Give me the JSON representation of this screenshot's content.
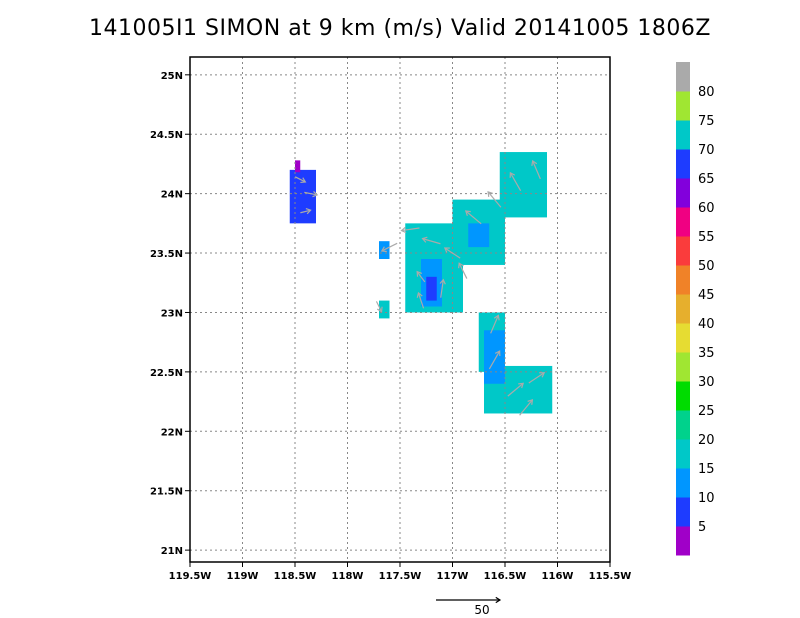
{
  "title": "141005I1 SIMON at 9 km (m/s) Valid 20141005 1806Z",
  "colors": {
    "c5": "#a000c8",
    "c10": "#1e3cff",
    "c15": "#0096ff",
    "c20": "#00c8c8",
    "c25": "#00d28c",
    "c30": "#00dc00",
    "c35": "#a0e632",
    "c40": "#e6dc32",
    "c45": "#e6af2d",
    "c50": "#f08228",
    "c55": "#fa3c3c",
    "c60": "#f00082",
    "c65": "#8200dc",
    "c70": "#1e3cff",
    "c75": "#00c8c8",
    "c80": "#a0e632",
    "cTop": "#aaaaaa",
    "arrow": "#aaaaaa",
    "grid": "#888888"
  },
  "chart_data": {
    "type": "heatmap",
    "title": "141005I1 SIMON at 9 km (m/s) Valid 20141005 1806Z",
    "x_ticks": [
      "119.5W",
      "119W",
      "118.5W",
      "118W",
      "117.5W",
      "117W",
      "116.5W",
      "116W",
      "115.5W"
    ],
    "y_ticks": [
      "21N",
      "21.5N",
      "22N",
      "22.5N",
      "23N",
      "23.5N",
      "24N",
      "24.5N",
      "25N"
    ],
    "xlim": [
      -119.5,
      -115.5
    ],
    "ylim": [
      20.9,
      25.15
    ],
    "grid": true,
    "colorbar_levels": [
      "5",
      "10",
      "15",
      "20",
      "25",
      "30",
      "35",
      "40",
      "45",
      "50",
      "55",
      "60",
      "65",
      "70",
      "75",
      "80"
    ],
    "colorbar_colors": [
      "#a000c8",
      "#1e3cff",
      "#0096ff",
      "#00c8c8",
      "#00d28c",
      "#00dc00",
      "#a0e632",
      "#e6dc32",
      "#e6af2d",
      "#f08228",
      "#fa3c3c",
      "#f00082",
      "#8200dc",
      "#1e3cff",
      "#00c8c8",
      "#a0e632",
      "#aaaaaa"
    ],
    "reference_vector_label": "50",
    "reference_vector_speed": 50,
    "regions": [
      {
        "name": "cell-northwest",
        "level": "10",
        "lon": [
          -118.55,
          -118.3
        ],
        "lat": [
          23.75,
          24.2
        ]
      },
      {
        "name": "cell-northwest-edge",
        "level": "5",
        "lon": [
          -118.5,
          -118.45
        ],
        "lat": [
          24.18,
          24.28
        ]
      },
      {
        "name": "cell-small-west",
        "level": "15",
        "lon": [
          -117.7,
          -117.6
        ],
        "lat": [
          23.45,
          23.6
        ]
      },
      {
        "name": "cell-small-south",
        "level": "20",
        "lon": [
          -117.7,
          -117.6
        ],
        "lat": [
          22.95,
          23.1
        ]
      },
      {
        "name": "band-north",
        "level": "20",
        "lon": [
          -117.0,
          -116.5
        ],
        "lat": [
          23.4,
          23.95
        ]
      },
      {
        "name": "band-northeast",
        "level": "20",
        "lon": [
          -116.55,
          -116.1
        ],
        "lat": [
          23.8,
          24.35
        ]
      },
      {
        "name": "band-central",
        "level": "20",
        "lon": [
          -117.45,
          -116.9
        ],
        "lat": [
          23.0,
          23.75
        ]
      },
      {
        "name": "core-central",
        "level": "15",
        "lon": [
          -117.3,
          -117.1
        ],
        "lat": [
          23.05,
          23.45
        ]
      },
      {
        "name": "core-central-strong",
        "level": "10",
        "lon": [
          -117.25,
          -117.15
        ],
        "lat": [
          23.1,
          23.3
        ]
      },
      {
        "name": "core-north",
        "level": "15",
        "lon": [
          -116.85,
          -116.65
        ],
        "lat": [
          23.55,
          23.75
        ]
      },
      {
        "name": "band-south",
        "level": "20",
        "lon": [
          -116.7,
          -116.05
        ],
        "lat": [
          22.15,
          22.55
        ]
      },
      {
        "name": "band-south-stem",
        "level": "20",
        "lon": [
          -116.75,
          -116.5
        ],
        "lat": [
          22.5,
          23.0
        ]
      },
      {
        "name": "core-south",
        "level": "15",
        "lon": [
          -116.7,
          -116.5
        ],
        "lat": [
          22.4,
          22.85
        ]
      }
    ],
    "vectors": [
      {
        "lon": -118.45,
        "lat": 24.12,
        "u": 8,
        "v": -4
      },
      {
        "lon": -118.35,
        "lat": 24.0,
        "u": 10,
        "v": -2
      },
      {
        "lon": -118.4,
        "lat": 23.85,
        "u": 8,
        "v": 2
      },
      {
        "lon": -117.6,
        "lat": 23.55,
        "u": -12,
        "v": -6
      },
      {
        "lon": -117.4,
        "lat": 23.7,
        "u": -14,
        "v": -2
      },
      {
        "lon": -117.2,
        "lat": 23.6,
        "u": -14,
        "v": 4
      },
      {
        "lon": -117.0,
        "lat": 23.5,
        "u": -12,
        "v": 8
      },
      {
        "lon": -116.8,
        "lat": 23.8,
        "u": -12,
        "v": 10
      },
      {
        "lon": -116.6,
        "lat": 23.95,
        "u": -10,
        "v": 12
      },
      {
        "lon": -116.4,
        "lat": 24.1,
        "u": -8,
        "v": 14
      },
      {
        "lon": -116.2,
        "lat": 24.2,
        "u": -6,
        "v": 14
      },
      {
        "lon": -117.3,
        "lat": 23.3,
        "u": -6,
        "v": 8
      },
      {
        "lon": -117.1,
        "lat": 23.2,
        "u": 2,
        "v": 14
      },
      {
        "lon": -117.3,
        "lat": 23.1,
        "u": -4,
        "v": 12
      },
      {
        "lon": -116.9,
        "lat": 23.35,
        "u": -6,
        "v": 12
      },
      {
        "lon": -116.6,
        "lat": 22.9,
        "u": 6,
        "v": 14
      },
      {
        "lon": -116.6,
        "lat": 22.6,
        "u": 8,
        "v": 14
      },
      {
        "lon": -116.4,
        "lat": 22.35,
        "u": 12,
        "v": 10
      },
      {
        "lon": -116.2,
        "lat": 22.45,
        "u": 12,
        "v": 8
      },
      {
        "lon": -116.3,
        "lat": 22.2,
        "u": 10,
        "v": 12
      },
      {
        "lon": -117.7,
        "lat": 23.05,
        "u": 4,
        "v": -8
      }
    ]
  }
}
